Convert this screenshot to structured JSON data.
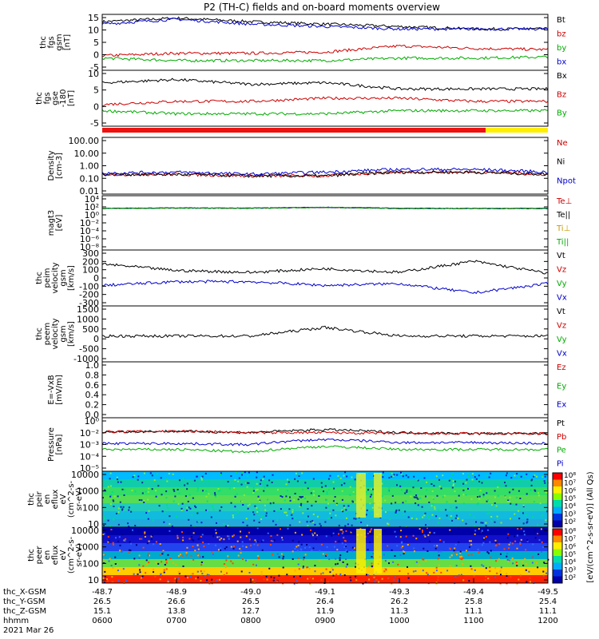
{
  "title": "P2 (TH-C) fields and on-board moments overview",
  "panels": [
    {
      "ylabel": [
        "thc",
        "fgs",
        "gsm",
        "[nT]"
      ],
      "ticks": [
        [
          "15",
          "15"
        ],
        [
          "10",
          "10"
        ],
        [
          "5",
          "5"
        ],
        [
          "0",
          "0"
        ],
        [
          "-5",
          "-5"
        ]
      ],
      "ylim": [
        -7,
        16
      ],
      "legend": [
        [
          "Bt",
          "#000000"
        ],
        [
          "bz",
          "#cc0000"
        ],
        [
          "by",
          "#00aa00"
        ],
        [
          "bx",
          "#0000cc"
        ]
      ]
    },
    {
      "ylabel": [
        "thc",
        "fgs",
        "gse",
        "-180",
        "[nT]"
      ],
      "ticks": [
        [
          "10",
          "10"
        ],
        [
          "5",
          "5"
        ],
        [
          "0",
          "0"
        ],
        [
          "-5",
          "-5"
        ]
      ],
      "ylim": [
        -7,
        11
      ],
      "legend": [
        [
          "Bx",
          "#000000"
        ],
        [
          "Bz",
          "#cc0000"
        ],
        [
          "By",
          "#00aa00"
        ]
      ]
    },
    {
      "ylabel": [
        "Density",
        "[cm-3]"
      ],
      "ticks": [
        [
          "100.00",
          "100.00"
        ],
        [
          "10.00",
          "10.00"
        ],
        [
          "1.00",
          "1.00"
        ],
        [
          "0.10",
          "0.10"
        ],
        [
          "0.01",
          "0.01"
        ]
      ],
      "ylim": [
        -2.3,
        2.3
      ],
      "log": true,
      "legend": [
        [
          "Ne",
          "#cc0000"
        ],
        [
          "Ni",
          "#000000"
        ],
        [
          "Npot",
          "#0000cc"
        ]
      ]
    },
    {
      "ylabel": [
        "magt3",
        "[eV]"
      ],
      "ticks": [
        [
          "10^4",
          "10⁴"
        ],
        [
          "10^2",
          "10²"
        ],
        [
          "10^0",
          "10⁰"
        ],
        [
          "10^-2",
          "10⁻²"
        ],
        [
          "10^-4",
          "10⁻⁴"
        ],
        [
          "10^-6",
          "10⁻⁶"
        ],
        [
          "10^-8",
          "10⁻⁸"
        ]
      ],
      "ylim": [
        -10,
        5
      ],
      "log": true,
      "legend": [
        [
          "Te⊥",
          "#cc0000"
        ],
        [
          "Te||",
          "#000000"
        ],
        [
          "Ti⊥",
          "#cc9900"
        ],
        [
          "Ti||",
          "#00aa00"
        ]
      ]
    },
    {
      "ylabel": [
        "thc",
        "peim",
        "velocity",
        "gsm",
        "[km/s]"
      ],
      "ticks": [
        [
          "300",
          "300"
        ],
        [
          "200",
          "200"
        ],
        [
          "100",
          "100"
        ],
        [
          "0",
          "0"
        ],
        [
          "-100",
          "-100"
        ],
        [
          "-200",
          "-200"
        ],
        [
          "-300",
          "-300"
        ]
      ],
      "ylim": [
        -300,
        300
      ],
      "legend": [
        [
          "Vt",
          "#000000"
        ],
        [
          "Vz",
          "#cc0000"
        ],
        [
          "Vy",
          "#00aa00"
        ],
        [
          "Vx",
          "#0000cc"
        ]
      ]
    },
    {
      "ylabel": [
        "thc",
        "peem",
        "velocity",
        "gsm",
        "[km/s]"
      ],
      "ticks": [
        [
          "1500",
          "1500"
        ],
        [
          "1000",
          "1000"
        ],
        [
          "500",
          "500"
        ],
        [
          "0",
          "0"
        ],
        [
          "-500",
          "-500"
        ],
        [
          "-1000",
          "-1000"
        ]
      ],
      "ylim": [
        -1000,
        1600
      ],
      "legend": [
        [
          "Vt",
          "#000000"
        ],
        [
          "Vz",
          "#cc0000"
        ],
        [
          "Vy",
          "#00aa00"
        ],
        [
          "Vx",
          "#0000cc"
        ]
      ]
    },
    {
      "ylabel": [
        "E=-VxB",
        "[mV/m]"
      ],
      "ticks": [
        [
          "1.0",
          "1.0"
        ],
        [
          "0.8",
          "0.8"
        ],
        [
          "0.6",
          "0.6"
        ],
        [
          "0.4",
          "0.4"
        ],
        [
          "0.2",
          "0.2"
        ],
        [
          "0.0",
          "0.0"
        ]
      ],
      "ylim": [
        0,
        1
      ],
      "legend": [
        [
          "Ez",
          "#cc0000"
        ],
        [
          "Ey",
          "#00aa00"
        ],
        [
          "Ex",
          "#0000cc"
        ]
      ]
    },
    {
      "ylabel": [
        "Pressure",
        "[nPa]"
      ],
      "ticks": [
        [
          "10^0",
          "10⁰"
        ],
        [
          "10^-2",
          "10⁻²"
        ],
        [
          "10^-3",
          "10⁻³"
        ],
        [
          "10^-4",
          "10⁻⁴"
        ],
        [
          "10^-5",
          "10⁻⁵"
        ]
      ],
      "ylim": [
        -5.2,
        0.2
      ],
      "log": true,
      "legend": [
        [
          "Pt",
          "#000000"
        ],
        [
          "Pb",
          "#cc0000"
        ],
        [
          "Pe",
          "#00aa00"
        ],
        [
          "Pi",
          "#0000cc"
        ]
      ]
    },
    {
      "ylabel": [
        "thc",
        "peir",
        "en",
        "eflux",
        "eV",
        "(cm^2-s-",
        "sr-eV)"
      ],
      "ticks": [
        [
          "10000",
          "10000"
        ],
        [
          "1000",
          "1000"
        ],
        [
          "100",
          "100"
        ],
        [
          "10",
          "10"
        ]
      ],
      "ylim": [
        0.8,
        4.3
      ],
      "log": true,
      "legend": []
    },
    {
      "ylabel": [
        "thc",
        "peer",
        "en",
        "eflux",
        "eV",
        "(cm^2-s-",
        "sr-eV)"
      ],
      "ticks": [
        [
          "10000",
          "10000"
        ],
        [
          "1000",
          "1000"
        ],
        [
          "100",
          "100"
        ],
        [
          "10",
          "10"
        ]
      ],
      "ylim": [
        0.8,
        4.3
      ],
      "log": true,
      "legend": []
    }
  ],
  "colorbar": {
    "label": "[eV/(cm^2-s-sr-eV)] (All Qs)",
    "ticks": [
      "10^8",
      "10^7",
      "10^6",
      "10^5",
      "10^4",
      "10^3",
      "10^2"
    ],
    "ticks_display": [
      "10⁸",
      "10⁷",
      "10⁶",
      "10⁵",
      "10⁴",
      "10³",
      "10²"
    ]
  },
  "xaxis": {
    "row_labels": [
      "thc_X-GSM",
      "thc_Y-GSM",
      "thc_Z-GSM",
      "hhmm",
      "2021 Mar 26"
    ],
    "rows": [
      [
        "-48.7",
        "-48.9",
        "-49.0",
        "-49.1",
        "-49.3",
        "-49.4",
        "-49.5"
      ],
      [
        "26.5",
        "26.6",
        "26.5",
        "26.4",
        "26.2",
        "25.8",
        "25.4"
      ],
      [
        "15.1",
        "13.8",
        "12.7",
        "11.9",
        "11.3",
        "11.1",
        "11.1"
      ],
      [
        "0600",
        "0700",
        "0800",
        "0900",
        "1000",
        "1100",
        "1200"
      ]
    ]
  },
  "chart_data": {
    "type": "line",
    "title": "P2 (TH-C) fields and on-board moments overview",
    "x": [
      "0600",
      "0700",
      "0800",
      "0900",
      "1000",
      "1100",
      "1200"
    ],
    "xlabel": "hhmm",
    "date": "2021 Mar 26",
    "series": [
      {
        "panel": "fgs gsm [nT]",
        "name": "Bt",
        "values": [
          13,
          14.5,
          13,
          12,
          11,
          10,
          10
        ]
      },
      {
        "panel": "fgs gsm [nT]",
        "name": "bz",
        "values": [
          -1,
          0,
          0,
          0.5,
          3,
          2,
          1.5
        ]
      },
      {
        "panel": "fgs gsm [nT]",
        "name": "by",
        "values": [
          -2,
          -3,
          -3,
          -3,
          -2,
          -2,
          -1.5
        ]
      },
      {
        "panel": "fgs gsm [nT]",
        "name": "bx",
        "values": [
          12,
          14,
          12,
          11,
          10,
          10,
          10
        ]
      },
      {
        "panel": "fgs gse -180 [nT]",
        "name": "Bx",
        "values": [
          7,
          8,
          6.5,
          7,
          5,
          5,
          5
        ]
      },
      {
        "panel": "fgs gse -180 [nT]",
        "name": "Bz",
        "values": [
          0,
          1,
          1,
          2,
          2,
          1,
          1
        ]
      },
      {
        "panel": "fgs gse -180 [nT]",
        "name": "By",
        "values": [
          -2,
          -3,
          -3,
          -3,
          -2,
          -2,
          -2
        ]
      },
      {
        "panel": "Density [cm-3]",
        "name": "Ne",
        "values": [
          0.2,
          0.2,
          0.15,
          0.15,
          0.3,
          0.3,
          0.2
        ]
      },
      {
        "panel": "Density [cm-3]",
        "name": "Ni",
        "values": [
          0.2,
          0.2,
          0.15,
          0.15,
          0.3,
          0.3,
          0.2
        ]
      },
      {
        "panel": "Density [cm-3]",
        "name": "Npot",
        "values": [
          0.25,
          0.3,
          0.2,
          0.3,
          0.5,
          0.5,
          0.3
        ]
      },
      {
        "panel": "peim velocity gsm [km/s]",
        "name": "Vt",
        "values": [
          150,
          80,
          60,
          100,
          60,
          180,
          50
        ]
      },
      {
        "panel": "peim velocity gsm [km/s]",
        "name": "Vx",
        "values": [
          -80,
          -40,
          -40,
          -80,
          -60,
          -160,
          -60
        ]
      },
      {
        "panel": "peem velocity gsm [km/s]",
        "name": "Vt",
        "values": [
          200,
          200,
          200,
          600,
          200,
          200,
          200
        ]
      },
      {
        "panel": "Pressure [nPa]",
        "name": "Pt",
        "values": [
          0.06,
          0.07,
          0.05,
          0.1,
          0.05,
          0.04,
          0.04
        ]
      },
      {
        "panel": "Pressure [nPa]",
        "name": "Pb",
        "values": [
          0.06,
          0.07,
          0.05,
          0.05,
          0.04,
          0.04,
          0.04
        ]
      },
      {
        "panel": "Pressure [nPa]",
        "name": "Pe",
        "values": [
          0.001,
          0.001,
          0.0005,
          0.002,
          0.001,
          0.001,
          0.001
        ]
      },
      {
        "panel": "Pressure [nPa]",
        "name": "Pi",
        "values": [
          0.004,
          0.004,
          0.003,
          0.01,
          0.005,
          0.005,
          0.004
        ]
      }
    ],
    "spectrograms": [
      "peir en eflux",
      "peer en eflux"
    ],
    "colors": {
      "Bt": "#000000",
      "red": "#cc0000",
      "green": "#00aa00",
      "blue": "#0000cc",
      "yellow": "#ffee00"
    }
  }
}
